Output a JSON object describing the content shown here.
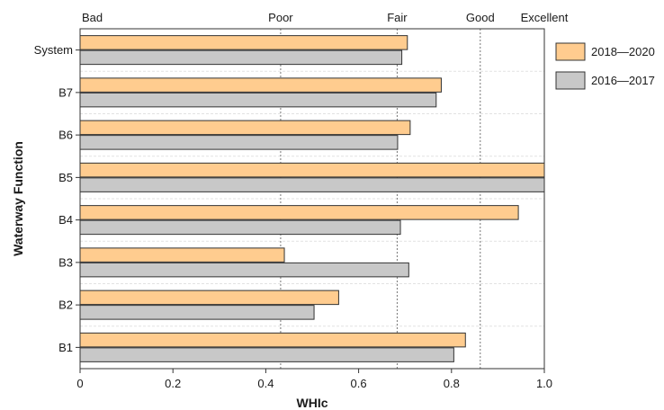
{
  "chart_data": {
    "type": "bar",
    "orientation": "horizontal",
    "xlabel": "WHIc",
    "ylabel": "Waterway Function",
    "xlim": [
      0,
      1.0
    ],
    "x_ticks": [
      "0",
      "0.2",
      "0.4",
      "0.6",
      "0.8",
      "1.0"
    ],
    "categories": [
      "System",
      "B7",
      "B6",
      "B5",
      "B4",
      "B3",
      "B2",
      "B1"
    ],
    "series": [
      {
        "name": "2018—2020",
        "color": "#ffcc8f",
        "values": [
          0.705,
          0.778,
          0.711,
          1.0,
          0.944,
          0.44,
          0.557,
          0.83
        ]
      },
      {
        "name": "2016—2017",
        "color": "#c8c8c8",
        "values": [
          0.693,
          0.767,
          0.684,
          1.0,
          0.69,
          0.708,
          0.504,
          0.805
        ]
      }
    ],
    "rating_thresholds": [
      {
        "label": "Bad",
        "value": 0.0,
        "line": false
      },
      {
        "label": "Poor",
        "value": 0.432,
        "line": true
      },
      {
        "label": "Fair",
        "value": 0.683,
        "line": true
      },
      {
        "label": "Good",
        "value": 0.862,
        "line": true
      },
      {
        "label": "Excellent",
        "value": 1.0,
        "line": false
      }
    ],
    "grid": "horizontal-dashed",
    "legend_position": "right"
  }
}
